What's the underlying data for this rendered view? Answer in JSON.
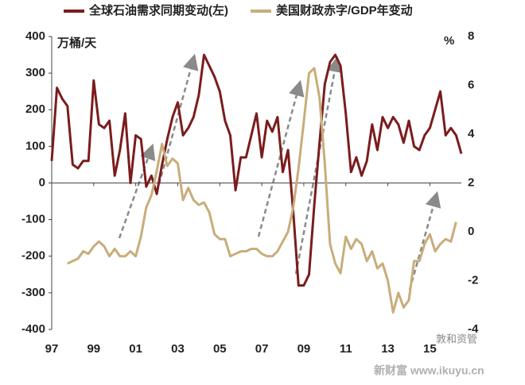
{
  "chart_data": {
    "type": "line",
    "legend_position": "top",
    "y_unit_label": "万桶/天",
    "y2_unit_label": "%",
    "watermark": "敦和资管",
    "footer": "新财富 www.ikuyu.cn",
    "x": [
      1997,
      1997.25,
      1997.5,
      1997.75,
      1998,
      1998.25,
      1998.5,
      1998.75,
      1999,
      1999.25,
      1999.5,
      1999.75,
      2000,
      2000.25,
      2000.5,
      2000.75,
      2001,
      2001.25,
      2001.5,
      2001.75,
      2002,
      2002.25,
      2002.5,
      2002.75,
      2003,
      2003.25,
      2003.5,
      2003.75,
      2004,
      2004.25,
      2004.5,
      2004.75,
      2005,
      2005.25,
      2005.5,
      2005.75,
      2006,
      2006.25,
      2006.5,
      2006.75,
      2007,
      2007.25,
      2007.5,
      2007.75,
      2008,
      2008.25,
      2008.5,
      2008.75,
      2009,
      2009.25,
      2009.5,
      2009.75,
      2010,
      2010.25,
      2010.5,
      2010.75,
      2011,
      2011.25,
      2011.5,
      2011.75,
      2012,
      2012.25,
      2012.5,
      2012.75,
      2013,
      2013.25,
      2013.5,
      2013.75,
      2014,
      2014.25,
      2014.5,
      2014.75,
      2015,
      2015.25,
      2015.5,
      2015.75,
      2016,
      2016.25,
      2016.5
    ],
    "series": [
      {
        "name": "全球石油需求同期变动(左)",
        "color": "#7b1c1c",
        "axis": "y",
        "values": [
          60,
          260,
          230,
          210,
          50,
          40,
          60,
          60,
          280,
          160,
          150,
          170,
          20,
          90,
          190,
          0,
          130,
          120,
          -10,
          20,
          -30,
          50,
          120,
          180,
          220,
          130,
          150,
          180,
          240,
          350,
          320,
          290,
          250,
          170,
          130,
          -20,
          70,
          70,
          130,
          190,
          70,
          170,
          140,
          180,
          30,
          90,
          -80,
          -280,
          -280,
          -250,
          -60,
          110,
          270,
          330,
          350,
          320,
          190,
          30,
          70,
          20,
          60,
          160,
          90,
          180,
          150,
          180,
          160,
          110,
          170,
          100,
          90,
          130,
          150,
          200,
          250,
          130,
          150,
          130,
          80
        ]
      },
      {
        "name": "美国财政赤字/GDP年变动",
        "color": "#c8ad7a",
        "axis": "y2",
        "values": [
          null,
          null,
          null,
          -1.3,
          -1.2,
          -1.1,
          -0.8,
          -0.9,
          -0.6,
          -0.4,
          -0.6,
          -1.0,
          -0.7,
          -1.0,
          -1.0,
          -0.8,
          -1.0,
          -0.2,
          1.0,
          1.5,
          2.5,
          3.6,
          2.7,
          3.0,
          2.8,
          1.3,
          1.8,
          1.3,
          1.1,
          1.2,
          0.8,
          -0.1,
          -0.3,
          -0.3,
          -1.0,
          -0.9,
          -0.8,
          -0.8,
          -0.7,
          -0.7,
          -0.9,
          -1.0,
          -1.0,
          -0.8,
          -0.4,
          0.0,
          1.0,
          2.6,
          4.5,
          6.5,
          6.7,
          5.5,
          2.8,
          -0.5,
          -1.3,
          -1.7,
          -0.2,
          -0.7,
          -0.3,
          -0.5,
          -1.2,
          -0.8,
          -1.5,
          -1.3,
          -2.0,
          -3.3,
          -2.5,
          -3.1,
          -2.8,
          -1.2,
          -1.2,
          -0.5,
          -0.1,
          -0.8,
          -0.5,
          -0.3,
          -0.4,
          0.4,
          null
        ]
      }
    ],
    "xlim": [
      1997,
      2016.5
    ],
    "xticks": [
      {
        "value": 1997,
        "label": "97"
      },
      {
        "value": 1999,
        "label": "99"
      },
      {
        "value": 2001,
        "label": "01"
      },
      {
        "value": 2003,
        "label": "03"
      },
      {
        "value": 2005,
        "label": "05"
      },
      {
        "value": 2007,
        "label": "07"
      },
      {
        "value": 2009,
        "label": "09"
      },
      {
        "value": 2011,
        "label": "11"
      },
      {
        "value": 2013,
        "label": "13"
      },
      {
        "value": 2015,
        "label": "15"
      }
    ],
    "ylim": [
      -400,
      400
    ],
    "yticks": [
      -400,
      -300,
      -200,
      -100,
      0,
      100,
      200,
      300,
      400
    ],
    "y2lim": [
      -4,
      8
    ],
    "y2ticks": [
      -4,
      -2,
      0,
      2,
      4,
      6,
      8
    ]
  }
}
